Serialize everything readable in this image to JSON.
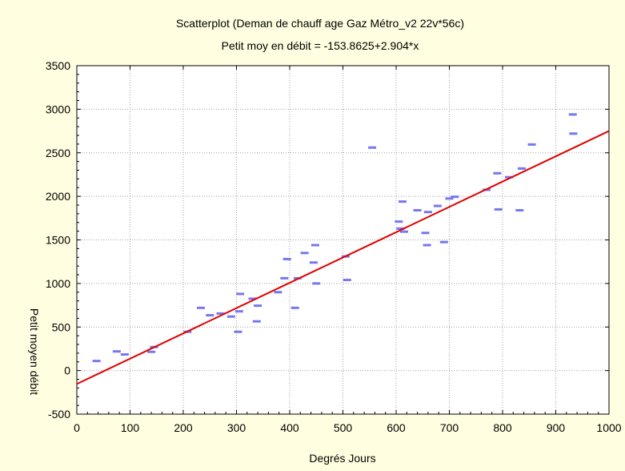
{
  "chart_data": {
    "type": "scatter",
    "title": "Scatterplot (Deman de chauff age Gaz Métro_v2 22v*56c)",
    "subtitle": "Petit moy en débit = -153.8625+2.904*x",
    "xlabel": "Degrés Jours",
    "ylabel": "Petit moyen débit",
    "xlim": [
      0,
      1000
    ],
    "ylim": [
      -500,
      3500
    ],
    "xticks": [
      0,
      100,
      200,
      300,
      400,
      500,
      600,
      700,
      800,
      900,
      1000
    ],
    "yticks": [
      -500,
      0,
      500,
      1000,
      1500,
      2000,
      2500,
      3000,
      3500
    ],
    "grid": true,
    "background_color": "#fffee0",
    "plot_background_color": "#ffffff",
    "marker_color": "#7777ee",
    "fit_line_color": "#e00000",
    "series": [
      {
        "points": [
          [
            37,
            110
          ],
          [
            75,
            220
          ],
          [
            90,
            185
          ],
          [
            140,
            215
          ],
          [
            145,
            270
          ],
          [
            208,
            445
          ],
          [
            233,
            720
          ],
          [
            250,
            635
          ],
          [
            270,
            655
          ],
          [
            290,
            620
          ],
          [
            303,
            445
          ],
          [
            305,
            680
          ],
          [
            307,
            880
          ],
          [
            330,
            825
          ],
          [
            338,
            565
          ],
          [
            340,
            745
          ],
          [
            378,
            900
          ],
          [
            390,
            1060
          ],
          [
            395,
            1280
          ],
          [
            410,
            720
          ],
          [
            415,
            1060
          ],
          [
            428,
            1350
          ],
          [
            445,
            1240
          ],
          [
            448,
            1440
          ],
          [
            450,
            1000
          ],
          [
            505,
            1310
          ],
          [
            508,
            1040
          ],
          [
            555,
            2560
          ],
          [
            605,
            1710
          ],
          [
            608,
            1630
          ],
          [
            612,
            1940
          ],
          [
            615,
            1595
          ],
          [
            640,
            1840
          ],
          [
            655,
            1580
          ],
          [
            658,
            1440
          ],
          [
            660,
            1820
          ],
          [
            678,
            1890
          ],
          [
            690,
            1475
          ],
          [
            700,
            1975
          ],
          [
            710,
            1995
          ],
          [
            770,
            2075
          ],
          [
            790,
            2265
          ],
          [
            792,
            1850
          ],
          [
            812,
            2220
          ],
          [
            832,
            1840
          ],
          [
            836,
            2320
          ],
          [
            855,
            2595
          ],
          [
            932,
            2940
          ],
          [
            933,
            2720
          ]
        ]
      }
    ],
    "fit_line": {
      "intercept": -153.8625,
      "slope": 2.904
    }
  }
}
